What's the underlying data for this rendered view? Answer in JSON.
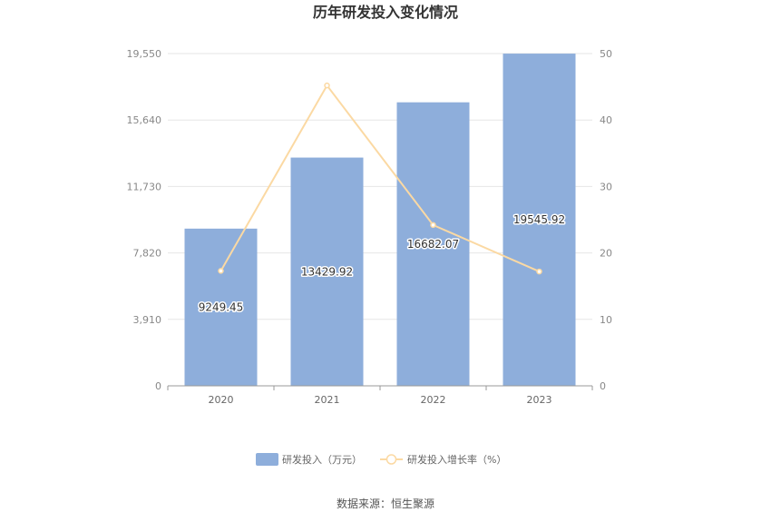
{
  "chart_data": {
    "type": "bar",
    "title": "历年研发投入变化情况",
    "categories": [
      "2020",
      "2021",
      "2022",
      "2023"
    ],
    "series": [
      {
        "name": "研发投入（万元）",
        "type": "bar",
        "axis": "left",
        "color": "#8eaedb",
        "values": [
          9249.45,
          13429.92,
          16682.07,
          19545.92
        ],
        "labels": [
          "9249.45",
          "13429.92",
          "16682.07",
          "19545.92"
        ]
      },
      {
        "name": "研发投入增长率（%）",
        "type": "line",
        "axis": "right",
        "color": "#fbd9a3",
        "values": [
          17.3,
          45.2,
          24.2,
          17.2
        ]
      }
    ],
    "y_left": {
      "min": 0,
      "max": 19550,
      "ticks": [
        0,
        3910,
        7820,
        11730,
        15640,
        19550
      ],
      "tick_labels": [
        "0",
        "3,910",
        "7,820",
        "11,730",
        "15,640",
        "19,550"
      ]
    },
    "y_right": {
      "min": 0,
      "max": 50,
      "ticks": [
        0,
        10,
        20,
        30,
        40,
        50
      ],
      "tick_labels": [
        "0",
        "10",
        "20",
        "30",
        "40",
        "50"
      ]
    },
    "grid": true,
    "legend_position": "bottom"
  },
  "source_text": "数据来源：恒生聚源"
}
